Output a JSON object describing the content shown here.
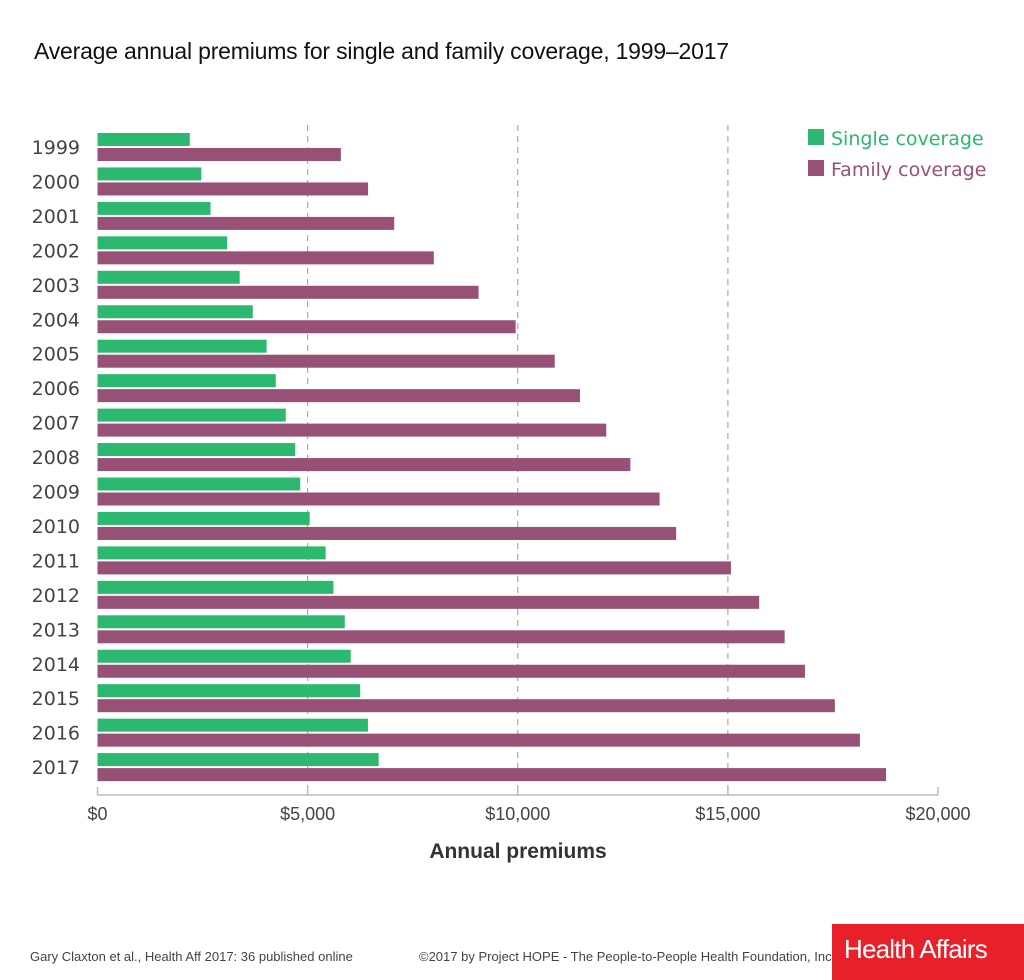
{
  "title": "Average annual premiums for single and family coverage, 1999–2017",
  "colors": {
    "single": "#2db870",
    "family": "#975177",
    "grid": "#aaaaaa",
    "axis": "#bbbbbb",
    "logo_bg": "#e8202a"
  },
  "legend": {
    "single_icon": "square-icon",
    "family_icon": "square-icon"
  },
  "footer": {
    "citation": "Gary Claxton et al., Health Aff 2017: 36 published online",
    "copyright": "©2017 by Project HOPE - The People-to-People Health Foundation, Inc.",
    "logo": "Health Affairs"
  },
  "chart_data": {
    "type": "bar",
    "orientation": "horizontal",
    "title": "Average annual premiums for single and family coverage, 1999–2017",
    "xlabel": "Annual premiums",
    "ylabel": "",
    "xlim": [
      0,
      20000
    ],
    "xticks": [
      0,
      5000,
      10000,
      15000,
      20000
    ],
    "xtick_labels": [
      "$0",
      "$5,000",
      "$10,000",
      "$15,000",
      "$20,000"
    ],
    "grid": "vertical dashed at $5,000, $10,000, $15,000",
    "legend_position": "top-right",
    "categories": [
      "1999",
      "2000",
      "2001",
      "2002",
      "2003",
      "2004",
      "2005",
      "2006",
      "2007",
      "2008",
      "2009",
      "2010",
      "2011",
      "2012",
      "2013",
      "2014",
      "2015",
      "2016",
      "2017"
    ],
    "series": [
      {
        "name": "Single coverage",
        "values": [
          2196,
          2471,
          2689,
          3083,
          3383,
          3695,
          4024,
          4242,
          4479,
          4704,
          4824,
          5049,
          5429,
          5615,
          5884,
          6025,
          6251,
          6435,
          6690
        ]
      },
      {
        "name": "Family coverage",
        "values": [
          5791,
          6438,
          7061,
          8003,
          9068,
          9950,
          10880,
          11480,
          12106,
          12680,
          13375,
          13770,
          15073,
          15745,
          16351,
          16834,
          17545,
          18142,
          18764
        ]
      }
    ]
  }
}
